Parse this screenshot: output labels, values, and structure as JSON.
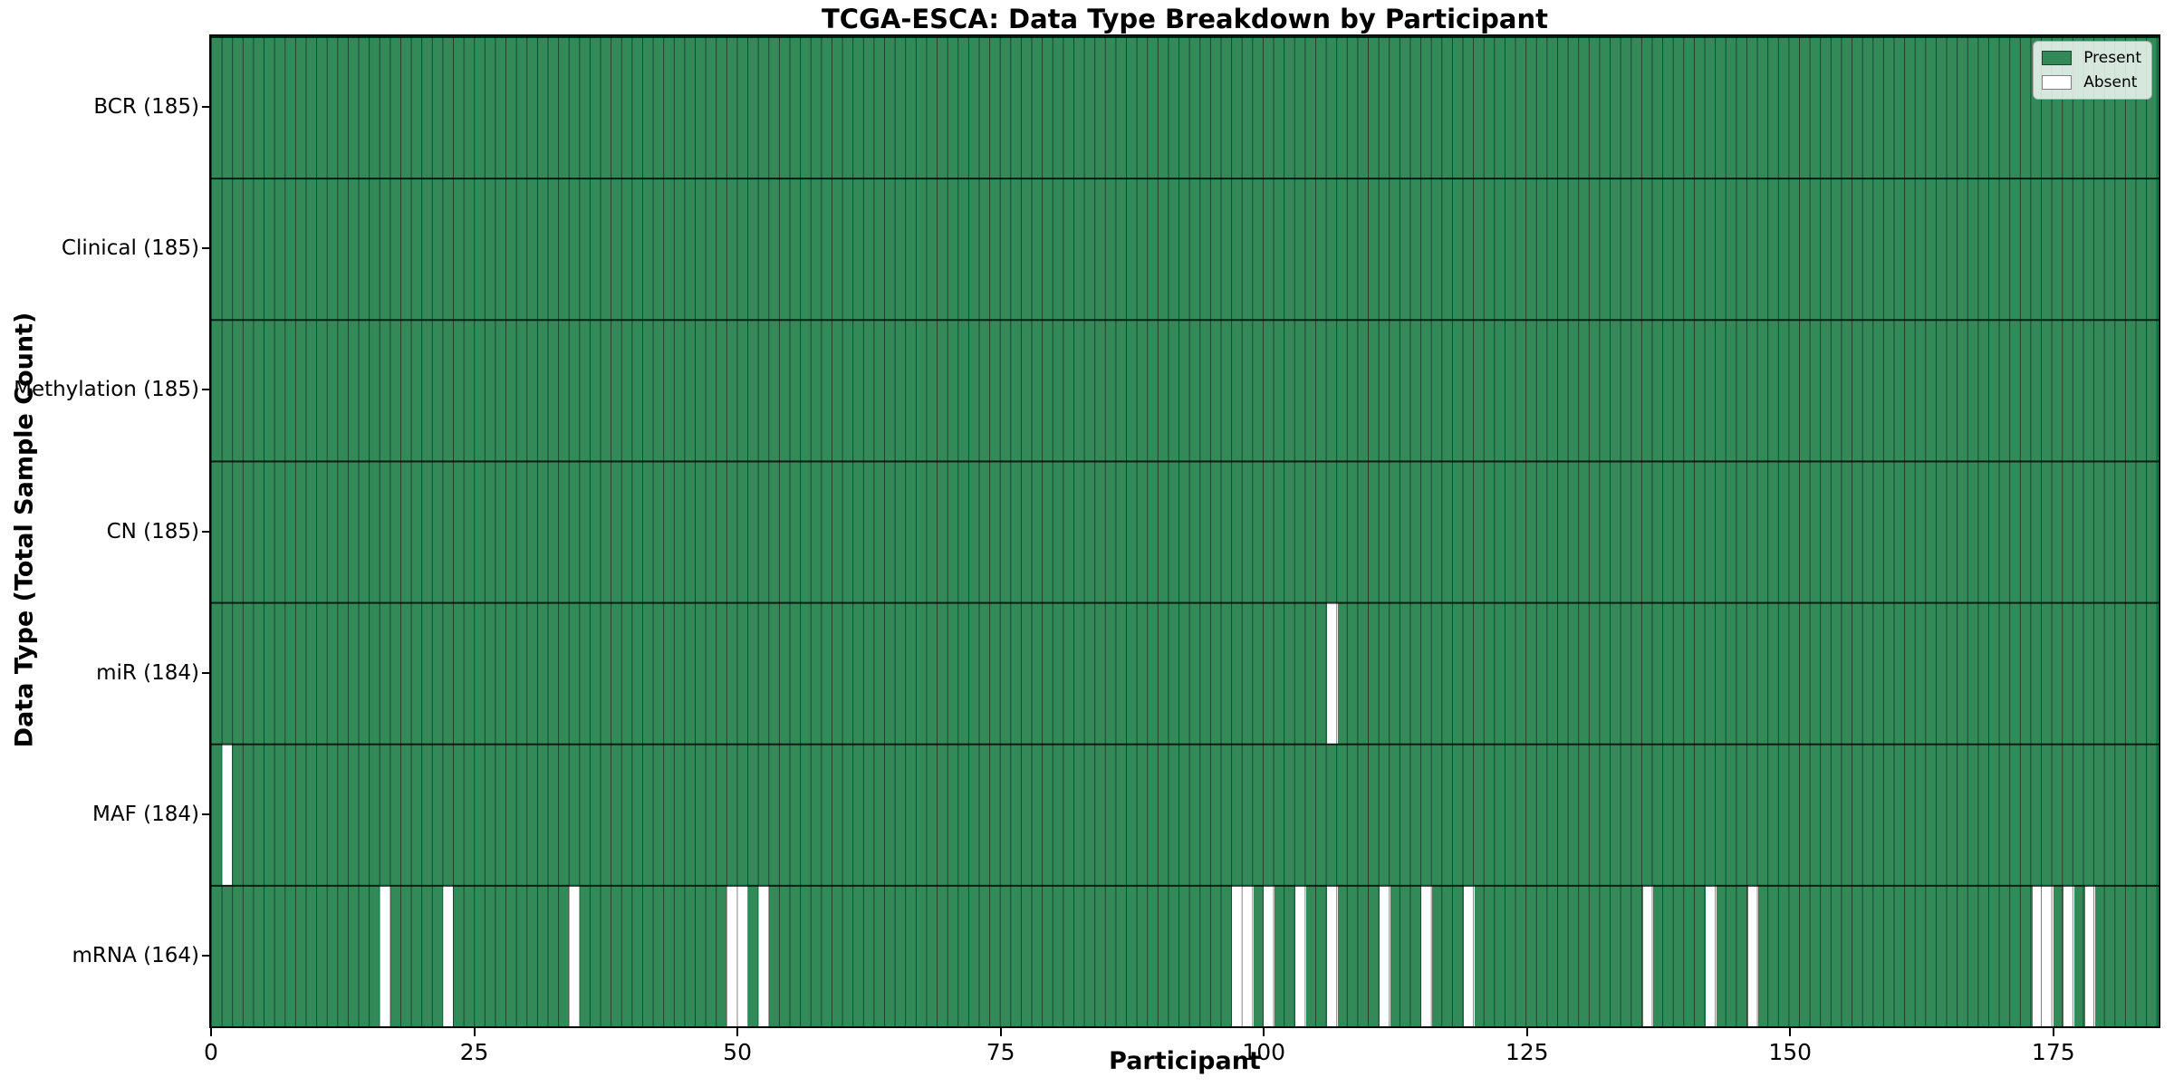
{
  "title": "TCGA-ESCA: Data Type Breakdown by Participant",
  "x_axis": {
    "label": "Participant",
    "ticks": [
      0,
      25,
      50,
      75,
      100,
      125,
      150,
      175
    ],
    "max": 185
  },
  "y_axis": {
    "label": "Data Type (Total Sample Count)"
  },
  "legend": {
    "items": [
      {
        "label": "Present",
        "color": "#338a58"
      },
      {
        "label": "Absent",
        "color": "#ffffff"
      }
    ]
  },
  "colors": {
    "present": "#338a58",
    "absent": "#ffffff",
    "cell_grid_line": "rgba(0,0,0,0.5)",
    "row_separator_line": "rgba(0,0,0,0.8)",
    "spine": "#000000",
    "legend_background": "rgba(255,255,255,0.8)"
  },
  "chart_data": {
    "type": "heatmap",
    "title": "TCGA-ESCA: Data Type Breakdown by Participant",
    "xlabel": "Participant",
    "ylabel": "Data Type (Total Sample Count)",
    "x_range": [
      0,
      185
    ],
    "n_participants": 185,
    "grid": true,
    "legend_position": "upper right",
    "legend_entries": [
      "Present",
      "Absent"
    ],
    "rows": [
      {
        "label": "BCR (185)",
        "data_type": "BCR",
        "total_sample_count": 185,
        "absent_participants": []
      },
      {
        "label": "Clinical (185)",
        "data_type": "Clinical",
        "total_sample_count": 185,
        "absent_participants": []
      },
      {
        "label": "Methylation (185)",
        "data_type": "Methylation",
        "total_sample_count": 185,
        "absent_participants": []
      },
      {
        "label": "CN (185)",
        "data_type": "CN",
        "total_sample_count": 185,
        "absent_participants": []
      },
      {
        "label": "miR (184)",
        "data_type": "miR",
        "total_sample_count": 184,
        "absent_participants": [
          106
        ]
      },
      {
        "label": "MAF (184)",
        "data_type": "MAF",
        "total_sample_count": 184,
        "absent_participants": [
          1
        ]
      },
      {
        "label": "mRNA (164)",
        "data_type": "mRNA",
        "total_sample_count": 164,
        "absent_participants": [
          16,
          22,
          34,
          49,
          50,
          52,
          97,
          98,
          100,
          103,
          106,
          111,
          115,
          119,
          136,
          142,
          146,
          173,
          174,
          176,
          178
        ]
      }
    ]
  }
}
